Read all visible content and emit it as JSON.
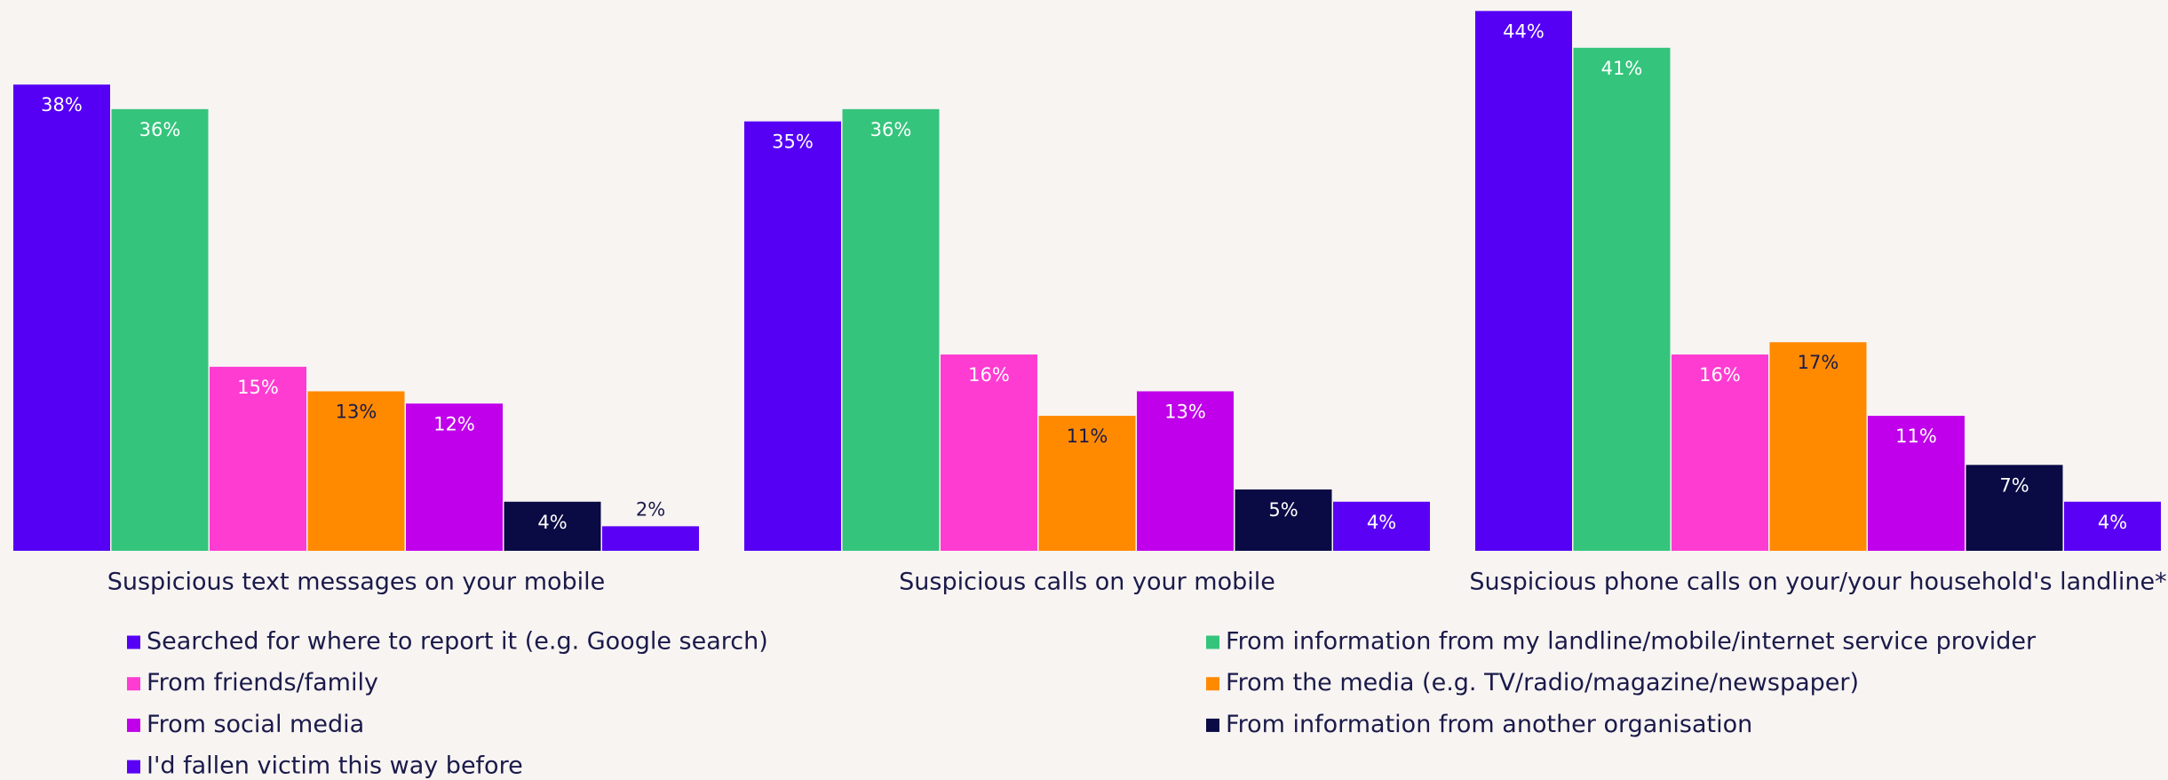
{
  "chart_data": {
    "type": "bar",
    "categories": [
      "Suspicious text messages on your mobile",
      "Suspicious calls on your mobile",
      "Suspicious phone calls on your/your household's landline*"
    ],
    "series": [
      {
        "name": "Searched for where to report it (e.g. Google search)",
        "color": "#5500f5",
        "values": [
          38,
          35,
          44
        ],
        "value_labels": [
          "38%",
          "35%",
          "44%"
        ]
      },
      {
        "name": "From information from my landline/mobile/internet service provider",
        "color": "#35c47c",
        "values": [
          36,
          36,
          41
        ],
        "value_labels": [
          "36%",
          "36%",
          "41%"
        ]
      },
      {
        "name": "From friends/family",
        "color": "#ff3cd2",
        "values": [
          15,
          16,
          16
        ],
        "value_labels": [
          "15%",
          "16%",
          "16%"
        ]
      },
      {
        "name": "From the media (e.g. TV/radio/magazine/newspaper)",
        "color": "#ff8a00",
        "values": [
          13,
          11,
          17
        ],
        "value_labels": [
          "13%",
          "11%",
          "17%"
        ]
      },
      {
        "name": "From social media",
        "color": "#c000ea",
        "values": [
          12,
          13,
          11
        ],
        "value_labels": [
          "12%",
          "13%",
          "11%"
        ]
      },
      {
        "name": "From information from another organisation",
        "color": "#0a0a45",
        "values": [
          4,
          5,
          7
        ],
        "value_labels": [
          "4%",
          "5%",
          "7%"
        ]
      },
      {
        "name": "I'd fallen victim this way before",
        "color": "#5a00f5",
        "values": [
          2,
          4,
          4
        ],
        "value_labels": [
          "2%",
          "4%",
          "4%"
        ]
      }
    ]
  }
}
